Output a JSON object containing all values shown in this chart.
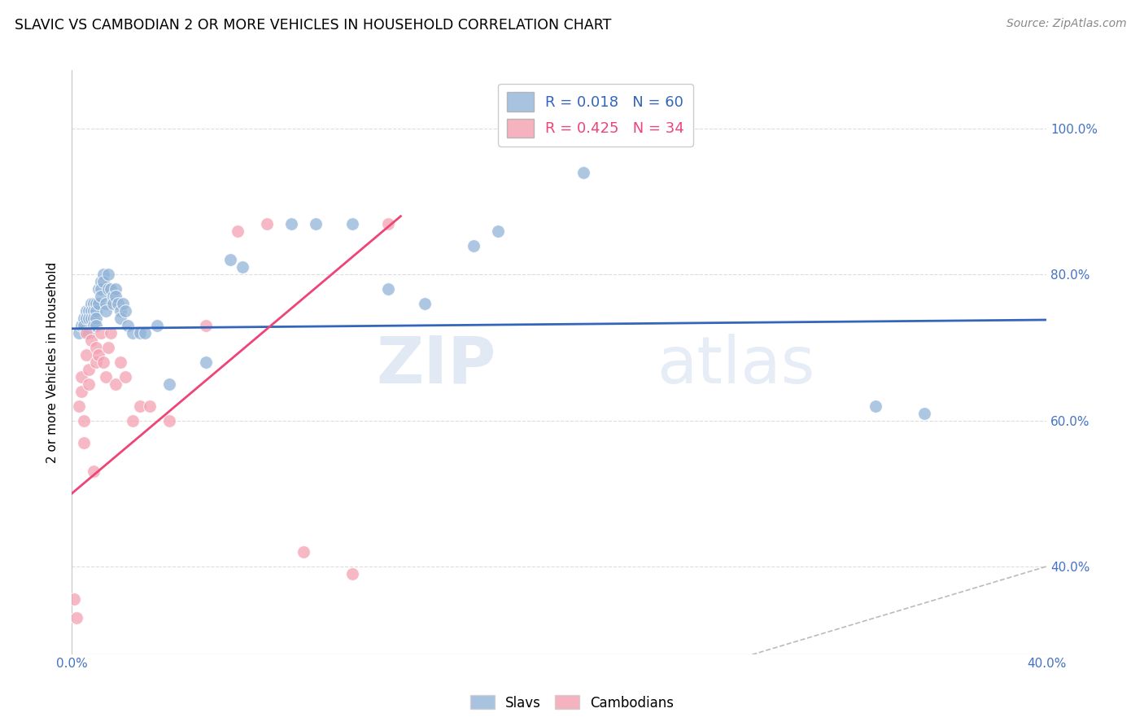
{
  "title": "SLAVIC VS CAMBODIAN 2 OR MORE VEHICLES IN HOUSEHOLD CORRELATION CHART",
  "source": "Source: ZipAtlas.com",
  "ylabel_label": "2 or more Vehicles in Household",
  "xlim": [
    0.0,
    0.4
  ],
  "ylim": [
    0.28,
    1.08
  ],
  "x_tick_positions": [
    0.0,
    0.05,
    0.1,
    0.15,
    0.2,
    0.25,
    0.3,
    0.35,
    0.4
  ],
  "x_tick_labels": [
    "0.0%",
    "",
    "",
    "",
    "",
    "",
    "",
    "",
    "40.0%"
  ],
  "y_tick_positions": [
    0.4,
    0.6,
    0.8,
    1.0
  ],
  "y_tick_labels": [
    "40.0%",
    "60.0%",
    "80.0%",
    "100.0%"
  ],
  "slavs_R": 0.018,
  "slavs_N": 60,
  "cambodians_R": 0.425,
  "cambodians_N": 34,
  "slavs_color": "#92B4D8",
  "cambodians_color": "#F4A0B0",
  "slavs_line_color": "#3366BB",
  "cambodians_line_color": "#EE4477",
  "diagonal_color": "#BBBBBB",
  "background_color": "#FFFFFF",
  "grid_color": "#DDDDDD",
  "slavs_x": [
    0.003,
    0.004,
    0.005,
    0.005,
    0.006,
    0.006,
    0.007,
    0.007,
    0.007,
    0.008,
    0.008,
    0.008,
    0.009,
    0.009,
    0.009,
    0.009,
    0.01,
    0.01,
    0.01,
    0.01,
    0.011,
    0.011,
    0.012,
    0.012,
    0.012,
    0.013,
    0.013,
    0.014,
    0.014,
    0.015,
    0.015,
    0.016,
    0.017,
    0.017,
    0.018,
    0.018,
    0.019,
    0.02,
    0.02,
    0.021,
    0.022,
    0.023,
    0.025,
    0.028,
    0.03,
    0.035,
    0.04,
    0.055,
    0.065,
    0.07,
    0.09,
    0.1,
    0.115,
    0.13,
    0.145,
    0.165,
    0.175,
    0.21,
    0.33,
    0.35
  ],
  "slavs_y": [
    0.72,
    0.73,
    0.74,
    0.73,
    0.75,
    0.74,
    0.75,
    0.72,
    0.74,
    0.76,
    0.75,
    0.74,
    0.76,
    0.75,
    0.74,
    0.73,
    0.76,
    0.75,
    0.74,
    0.73,
    0.78,
    0.76,
    0.79,
    0.78,
    0.77,
    0.8,
    0.79,
    0.76,
    0.75,
    0.8,
    0.78,
    0.78,
    0.77,
    0.76,
    0.78,
    0.77,
    0.76,
    0.75,
    0.74,
    0.76,
    0.75,
    0.73,
    0.72,
    0.72,
    0.72,
    0.73,
    0.65,
    0.68,
    0.82,
    0.81,
    0.87,
    0.87,
    0.87,
    0.78,
    0.76,
    0.84,
    0.86,
    0.94,
    0.62,
    0.61
  ],
  "cambodians_x": [
    0.001,
    0.002,
    0.003,
    0.004,
    0.004,
    0.005,
    0.005,
    0.006,
    0.006,
    0.007,
    0.007,
    0.008,
    0.009,
    0.01,
    0.01,
    0.011,
    0.012,
    0.013,
    0.014,
    0.015,
    0.016,
    0.018,
    0.02,
    0.022,
    0.025,
    0.028,
    0.032,
    0.04,
    0.055,
    0.068,
    0.08,
    0.095,
    0.115,
    0.13
  ],
  "cambodians_y": [
    0.355,
    0.33,
    0.62,
    0.66,
    0.64,
    0.6,
    0.57,
    0.69,
    0.72,
    0.67,
    0.65,
    0.71,
    0.53,
    0.7,
    0.68,
    0.69,
    0.72,
    0.68,
    0.66,
    0.7,
    0.72,
    0.65,
    0.68,
    0.66,
    0.6,
    0.62,
    0.62,
    0.6,
    0.73,
    0.86,
    0.87,
    0.42,
    0.39,
    0.87
  ],
  "watermark_zip": "ZIP",
  "watermark_atlas": "atlas",
  "slavs_line_x": [
    0.0,
    0.4
  ],
  "slavs_line_y": [
    0.726,
    0.738
  ],
  "cambodians_line_x": [
    0.0,
    0.135
  ],
  "cambodians_line_y": [
    0.5,
    0.88
  ]
}
